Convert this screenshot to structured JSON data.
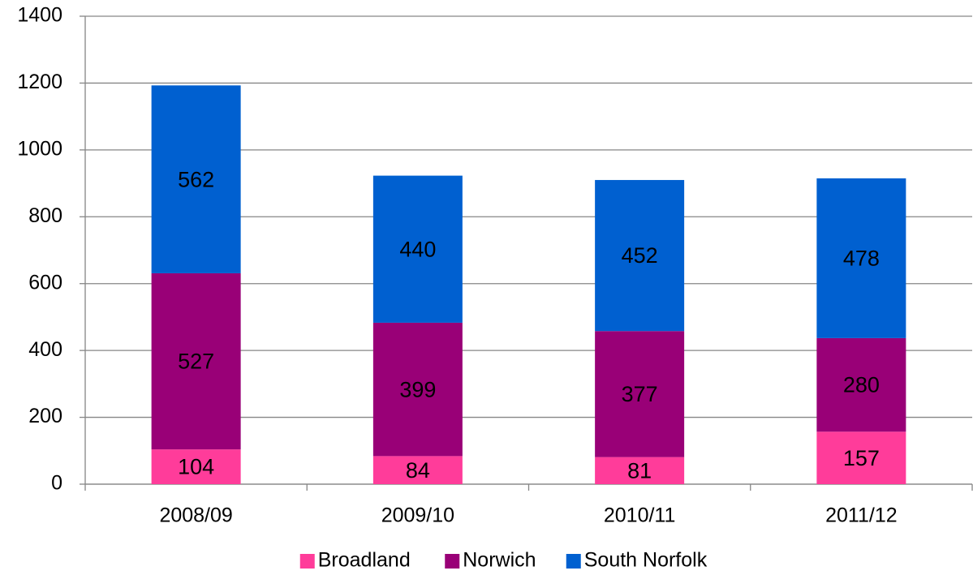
{
  "chart_data": {
    "type": "stacked_bar",
    "categories": [
      "2008/09",
      "2009/10",
      "2010/11",
      "2011/12"
    ],
    "series": [
      {
        "name": "Broadland",
        "color": "#ff3c9a",
        "values": [
          104,
          84,
          81,
          157
        ]
      },
      {
        "name": "Norwich",
        "color": "#990077",
        "values": [
          527,
          399,
          377,
          280
        ]
      },
      {
        "name": "South Norfolk",
        "color": "#0060d0",
        "values": [
          562,
          440,
          452,
          478
        ]
      }
    ],
    "ylim": [
      0,
      1400
    ],
    "yticks": [
      0,
      200,
      400,
      600,
      800,
      1000,
      1200,
      1400
    ],
    "grid": true,
    "legend": "bottom"
  }
}
